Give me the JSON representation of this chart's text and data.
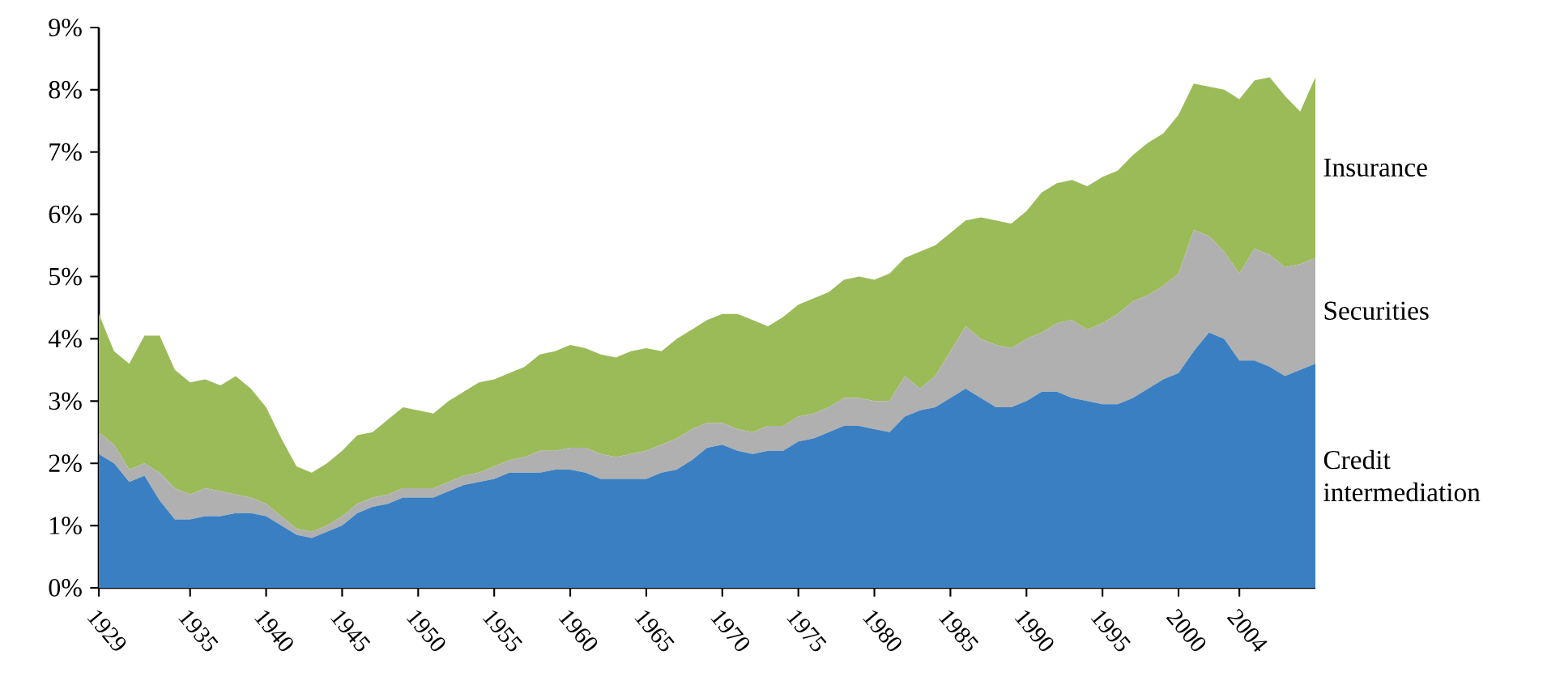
{
  "chart_data": {
    "type": "area",
    "stacked": true,
    "x": [
      1929,
      1930,
      1931,
      1932,
      1933,
      1934,
      1935,
      1936,
      1937,
      1938,
      1939,
      1940,
      1941,
      1942,
      1943,
      1944,
      1945,
      1946,
      1947,
      1948,
      1949,
      1950,
      1951,
      1952,
      1953,
      1954,
      1955,
      1956,
      1957,
      1958,
      1959,
      1960,
      1961,
      1962,
      1963,
      1964,
      1965,
      1966,
      1967,
      1968,
      1969,
      1970,
      1971,
      1972,
      1973,
      1974,
      1975,
      1976,
      1977,
      1978,
      1979,
      1980,
      1981,
      1982,
      1983,
      1984,
      1985,
      1986,
      1987,
      1988,
      1989,
      1990,
      1991,
      1992,
      1993,
      1994,
      1995,
      1996,
      1997,
      1998,
      1999,
      2000,
      2001,
      2002,
      2003,
      2004,
      2005,
      2006,
      2007,
      2008,
      2009
    ],
    "series": [
      {
        "name": "Credit intermediation",
        "color": "#3a7fc2",
        "values": [
          2.15,
          2.0,
          1.7,
          1.8,
          1.4,
          1.1,
          1.1,
          1.15,
          1.15,
          1.2,
          1.2,
          1.15,
          1.0,
          0.85,
          0.8,
          0.9,
          1.0,
          1.2,
          1.3,
          1.35,
          1.45,
          1.45,
          1.45,
          1.55,
          1.65,
          1.7,
          1.75,
          1.85,
          1.85,
          1.85,
          1.9,
          1.9,
          1.85,
          1.75,
          1.75,
          1.75,
          1.75,
          1.85,
          1.9,
          2.05,
          2.25,
          2.3,
          2.2,
          2.15,
          2.2,
          2.2,
          2.35,
          2.4,
          2.5,
          2.6,
          2.6,
          2.55,
          2.5,
          2.75,
          2.85,
          2.9,
          3.05,
          3.2,
          3.05,
          2.9,
          2.9,
          3.0,
          3.15,
          3.15,
          3.05,
          3.0,
          2.95,
          2.95,
          3.05,
          3.2,
          3.35,
          3.45,
          3.8,
          4.1,
          4.0,
          3.65,
          3.65,
          3.55,
          3.4,
          3.5,
          3.6
        ]
      },
      {
        "name": "Securities",
        "color": "#b0b0b0",
        "values": [
          0.35,
          0.3,
          0.2,
          0.2,
          0.45,
          0.5,
          0.4,
          0.45,
          0.4,
          0.3,
          0.25,
          0.2,
          0.15,
          0.1,
          0.1,
          0.1,
          0.15,
          0.15,
          0.15,
          0.15,
          0.15,
          0.15,
          0.15,
          0.15,
          0.15,
          0.15,
          0.2,
          0.2,
          0.25,
          0.35,
          0.3,
          0.35,
          0.4,
          0.4,
          0.35,
          0.4,
          0.45,
          0.45,
          0.5,
          0.5,
          0.4,
          0.35,
          0.35,
          0.35,
          0.4,
          0.4,
          0.4,
          0.4,
          0.4,
          0.45,
          0.45,
          0.45,
          0.5,
          0.65,
          0.35,
          0.5,
          0.75,
          1.0,
          0.95,
          1.0,
          0.95,
          1.0,
          0.95,
          1.1,
          1.25,
          1.15,
          1.3,
          1.45,
          1.55,
          1.5,
          1.5,
          1.6,
          1.95,
          1.55,
          1.4,
          1.4,
          1.8,
          1.8,
          1.75,
          1.7,
          1.7
        ]
      },
      {
        "name": "Insurance",
        "color": "#9bbb59",
        "values": [
          1.9,
          1.5,
          1.7,
          2.05,
          2.2,
          1.9,
          1.8,
          1.75,
          1.7,
          1.9,
          1.75,
          1.55,
          1.25,
          1.0,
          0.95,
          1.0,
          1.05,
          1.1,
          1.05,
          1.2,
          1.3,
          1.25,
          1.2,
          1.3,
          1.35,
          1.45,
          1.4,
          1.4,
          1.45,
          1.55,
          1.6,
          1.65,
          1.6,
          1.6,
          1.6,
          1.65,
          1.65,
          1.5,
          1.6,
          1.6,
          1.65,
          1.75,
          1.85,
          1.8,
          1.6,
          1.75,
          1.8,
          1.85,
          1.85,
          1.9,
          1.95,
          1.95,
          2.05,
          1.9,
          2.2,
          2.1,
          1.9,
          1.7,
          1.95,
          2.0,
          2.0,
          2.05,
          2.25,
          2.25,
          2.25,
          2.3,
          2.35,
          2.3,
          2.35,
          2.45,
          2.45,
          2.55,
          2.35,
          2.4,
          2.6,
          2.8,
          2.7,
          2.85,
          2.75,
          2.45,
          2.9
        ]
      }
    ],
    "xlim": [
      1929,
      2009
    ],
    "xticks": [
      1929,
      1935,
      1940,
      1945,
      1950,
      1955,
      1960,
      1965,
      1970,
      1975,
      1980,
      1985,
      1990,
      1995,
      2000,
      2004
    ],
    "ylim": [
      0,
      9
    ],
    "yticks": [
      {
        "value": 0,
        "label": "0%"
      },
      {
        "value": 1,
        "label": "1%"
      },
      {
        "value": 2,
        "label": "2%"
      },
      {
        "value": 3,
        "label": "3%"
      },
      {
        "value": 4,
        "label": "4%"
      },
      {
        "value": 5,
        "label": "5%"
      },
      {
        "value": 6,
        "label": "6%"
      },
      {
        "value": 7,
        "label": "7%"
      },
      {
        "value": 8,
        "label": "8%"
      },
      {
        "value": 9,
        "label": "9%"
      }
    ],
    "grid": false,
    "legend": false
  }
}
